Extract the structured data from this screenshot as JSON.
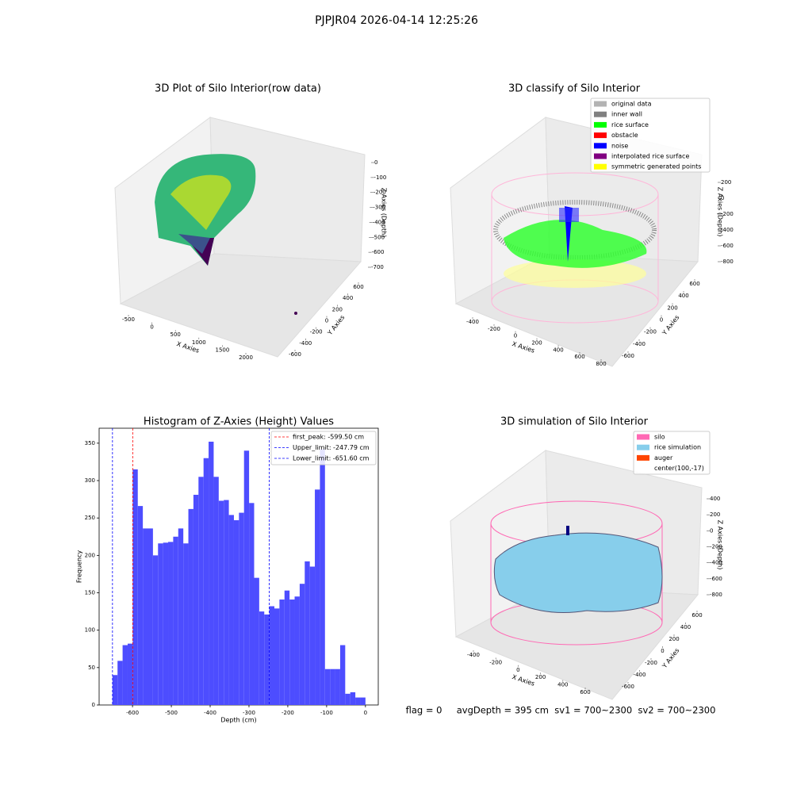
{
  "title": "PJPJR04 2026-04-14 12:25:26",
  "footer": "flag = 0     avgDepth = 395 cm  sv1 = 700~2300  sv2 = 700~2300",
  "chart_data": [
    {
      "type": "scatter3d",
      "title": "3D Plot of Silo Interior(row data)",
      "x_label": "X Axies",
      "y_label": "Y Axies",
      "z_label": "Z Axies (Depth)",
      "xticks": [
        -500,
        0,
        500,
        1000,
        1500,
        2000
      ],
      "yticks": [
        -600,
        -400,
        -200,
        0,
        200,
        400,
        600
      ],
      "zticks": [
        0,
        -100,
        -200,
        -300,
        -400,
        -500,
        -600,
        -700
      ]
    },
    {
      "type": "scatter3d",
      "title": "3D classify of Silo Interior",
      "x_label": "X Axies",
      "y_label": "Y Axies",
      "z_label": "Z Axies (Depth)",
      "xticks": [
        -400,
        -200,
        0,
        200,
        400,
        600,
        800
      ],
      "yticks": [
        -600,
        -400,
        -200,
        0,
        200,
        400,
        600
      ],
      "zticks": [
        200,
        0,
        -200,
        -400,
        -600,
        -800
      ],
      "legend": [
        {
          "name": "original data",
          "color": "#b3b3b3"
        },
        {
          "name": "inner wall",
          "color": "#808080"
        },
        {
          "name": "rice surface",
          "color": "#00ff00"
        },
        {
          "name": "obstacle",
          "color": "#ff0000"
        },
        {
          "name": "noise",
          "color": "#0000ff"
        },
        {
          "name": "interpolated rice surface",
          "color": "#800080"
        },
        {
          "name": "symmetric generated points",
          "color": "#ffff00"
        }
      ]
    },
    {
      "type": "histogram",
      "title": "Histogram of Z-Axies (Height) Values",
      "x_label": "Depth (cm)",
      "y_label": "Frequency",
      "color": "#4d4dff",
      "bins": [
        -651.6,
        -638.57,
        -625.54,
        -612.5,
        -599.47,
        -586.44,
        -573.41,
        -560.38,
        -547.34,
        -534.31,
        -521.28,
        -508.25,
        -495.22,
        -482.18,
        -469.15,
        -456.12,
        -443.09,
        -430.06,
        -417.02,
        -403.99,
        -390.96,
        -377.93,
        -364.9,
        -351.86,
        -338.83,
        -325.8,
        -312.77,
        -299.74,
        -286.7,
        -273.67,
        -260.64,
        -247.61,
        -234.58,
        -221.54,
        -208.51,
        -195.48,
        -182.45,
        -169.42,
        -156.38,
        -143.35,
        -130.32,
        -117.29,
        -104.26,
        -91.22,
        -78.19,
        -65.16,
        -52.13,
        -39.1,
        -26.06,
        -13.03,
        0
      ],
      "values": [
        40,
        59,
        80,
        82,
        315,
        266,
        236,
        236,
        200,
        216,
        217,
        218,
        225,
        236,
        216,
        262,
        281,
        305,
        330,
        352,
        305,
        273,
        274,
        254,
        247,
        257,
        340,
        270,
        170,
        125,
        121,
        132,
        129,
        141,
        153,
        141,
        145,
        162,
        192,
        185,
        288,
        342,
        48,
        48,
        48,
        80,
        15,
        17,
        10,
        10
      ],
      "xlim": [
        -686,
        33
      ],
      "ylim": [
        0,
        370
      ],
      "xticks": [
        -600,
        -500,
        -400,
        -300,
        -200,
        -100,
        0
      ],
      "yticks": [
        0,
        50,
        100,
        150,
        200,
        250,
        300,
        350
      ],
      "vlines": [
        {
          "name": "first_peak: -599.50 cm",
          "value": -599.5,
          "color": "#ff0000"
        },
        {
          "name": "Upper_limit: -247.79 cm",
          "value": -247.79,
          "color": "#0000ff"
        },
        {
          "name": "Lower_limit: -651.60 cm",
          "value": -651.6,
          "color": "#0000ff"
        }
      ]
    },
    {
      "type": "surface3d",
      "title": "3D simulation of Silo Interior",
      "x_label": "X Axies",
      "y_label": "Y Axies",
      "z_label": "Z Axies (Depth)",
      "xticks": [
        -400,
        -200,
        0,
        200,
        400,
        600
      ],
      "yticks": [
        -600,
        -400,
        -200,
        0,
        200,
        400,
        600
      ],
      "zticks": [
        400,
        200,
        0,
        -200,
        -400,
        -600,
        -800
      ],
      "legend": [
        {
          "name": "silo",
          "color": "#ff69b4"
        },
        {
          "name": "rice simulation",
          "color": "#87ceeb"
        },
        {
          "name": "auger",
          "color": "#ff4500"
        },
        {
          "name": "center(100,-17)",
          "color": "none"
        }
      ]
    }
  ]
}
